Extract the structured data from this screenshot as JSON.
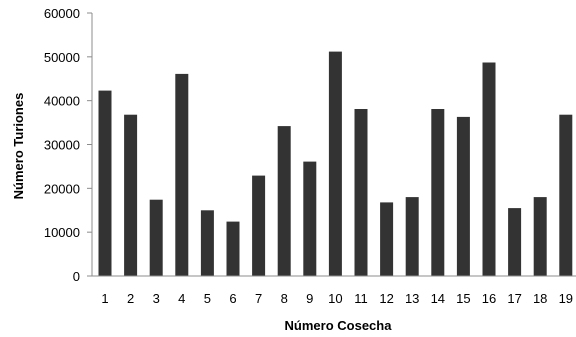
{
  "chart_data": {
    "type": "bar",
    "title": "",
    "xlabel": "Número Cosecha",
    "ylabel": "Número Turiones",
    "ylim": [
      0,
      60000
    ],
    "yticks": [
      0,
      10000,
      20000,
      30000,
      40000,
      50000,
      60000
    ],
    "categories": [
      "1",
      "2",
      "3",
      "4",
      "5",
      "6",
      "7",
      "8",
      "9",
      "10",
      "11",
      "12",
      "13",
      "14",
      "15",
      "16",
      "17",
      "18",
      "19"
    ],
    "values": [
      42300,
      36800,
      17400,
      46100,
      15000,
      12400,
      22900,
      34200,
      26100,
      51200,
      38100,
      16800,
      18000,
      38100,
      36300,
      48700,
      15500,
      18000,
      36800
    ],
    "grid": false,
    "legend": "none",
    "bar_color": "#333333"
  }
}
